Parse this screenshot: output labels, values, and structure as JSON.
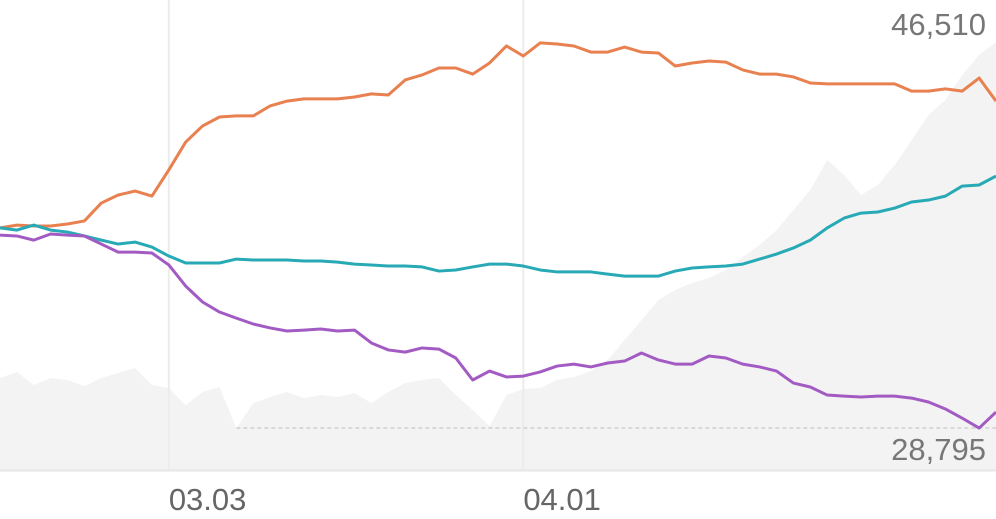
{
  "chart_data": {
    "type": "line",
    "categories": [
      null,
      null,
      null,
      null,
      null,
      null,
      null,
      null,
      null,
      null,
      "03.03",
      null,
      null,
      null,
      null,
      null,
      null,
      null,
      null,
      null,
      null,
      null,
      null,
      null,
      null,
      null,
      null,
      null,
      null,
      null,
      null,
      "04.01",
      null,
      null,
      null,
      null,
      null,
      null,
      null,
      null,
      null,
      null,
      null,
      null,
      null,
      null,
      null,
      null,
      null,
      null,
      null,
      null,
      null,
      null,
      null,
      null,
      null,
      null,
      null,
      null
    ],
    "ylim": [
      26870,
      48440
    ],
    "xgrid": true,
    "series": [
      {
        "style": "area",
        "color": "#f3f3f3",
        "values": [
          31090,
          31370,
          30770,
          31090,
          31000,
          30720,
          31090,
          31320,
          31550,
          30770,
          30630,
          29850,
          30450,
          30680,
          28795,
          29940,
          30220,
          30450,
          30170,
          30310,
          30220,
          30400,
          29940,
          30450,
          30860,
          31000,
          31090,
          30310,
          29620,
          28890,
          30310,
          30590,
          30630,
          31000,
          31140,
          31410,
          31920,
          32830,
          33750,
          34670,
          35130,
          35450,
          35680,
          36050,
          36640,
          37200,
          37880,
          38800,
          39720,
          41100,
          40410,
          39490,
          39950,
          40870,
          42010,
          43160,
          43850,
          45000,
          45920,
          46510
        ],
        "annotations": [
          {
            "value": 46510,
            "label": "46,510"
          },
          {
            "value": 28795,
            "label": "28,795"
          }
        ]
      },
      {
        "style": "line",
        "color": "#e8804f",
        "values": [
          37980,
          38110,
          38070,
          38070,
          38160,
          38300,
          39120,
          39490,
          39670,
          39440,
          40640,
          41920,
          42660,
          43070,
          43120,
          43120,
          43580,
          43800,
          43900,
          43900,
          43900,
          43990,
          44130,
          44080,
          44770,
          45000,
          45320,
          45320,
          45040,
          45550,
          46330,
          45870,
          46470,
          46420,
          46330,
          46050,
          46050,
          46280,
          46050,
          46010,
          45410,
          45550,
          45640,
          45590,
          45230,
          45040,
          45040,
          44910,
          44630,
          44590,
          44590,
          44590,
          44590,
          44590,
          44260,
          44260,
          44360,
          44260,
          44860,
          43800
        ]
      },
      {
        "style": "line",
        "color": "#27a9b6",
        "values": [
          37980,
          37880,
          38110,
          37880,
          37790,
          37610,
          37420,
          37240,
          37330,
          37100,
          36690,
          36370,
          36370,
          36370,
          36550,
          36510,
          36510,
          36510,
          36460,
          36460,
          36410,
          36320,
          36280,
          36230,
          36230,
          36190,
          36000,
          36050,
          36190,
          36320,
          36320,
          36230,
          36050,
          35960,
          35960,
          35960,
          35860,
          35770,
          35770,
          35770,
          36000,
          36140,
          36190,
          36230,
          36320,
          36550,
          36780,
          37060,
          37420,
          37980,
          38430,
          38660,
          38710,
          38890,
          39170,
          39260,
          39440,
          39900,
          39950,
          40360
        ]
      },
      {
        "style": "line",
        "color": "#a35bc4",
        "values": [
          37650,
          37610,
          37420,
          37700,
          37650,
          37610,
          37240,
          36870,
          36870,
          36830,
          36280,
          35310,
          34580,
          34120,
          33840,
          33570,
          33390,
          33250,
          33290,
          33340,
          33250,
          33290,
          32700,
          32380,
          32280,
          32470,
          32420,
          32010,
          31000,
          31410,
          31140,
          31180,
          31370,
          31640,
          31730,
          31600,
          31780,
          31870,
          32240,
          31920,
          31730,
          31730,
          32100,
          32010,
          31730,
          31600,
          31410,
          30860,
          30680,
          30310,
          30260,
          30220,
          30260,
          30260,
          30170,
          29990,
          29670,
          29250,
          28795,
          29530
        ]
      }
    ]
  }
}
